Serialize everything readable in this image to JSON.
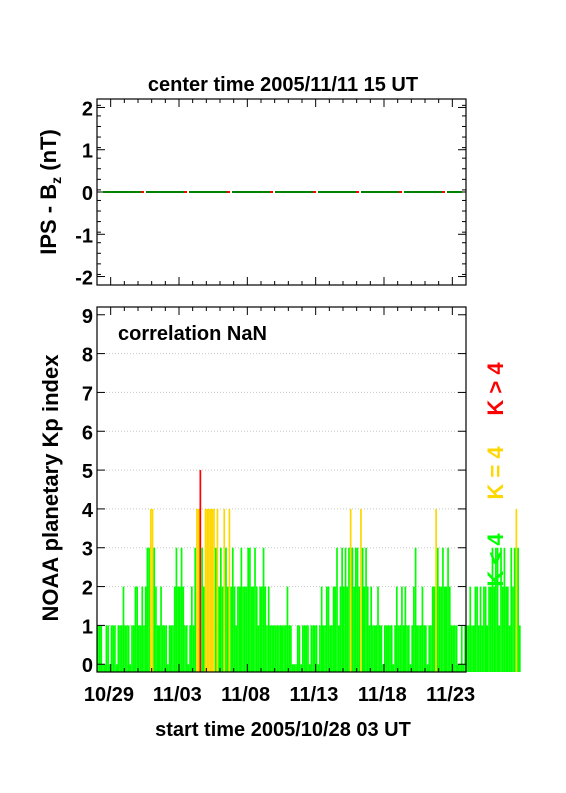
{
  "colors": {
    "k_lt4": "#00ff00",
    "k_eq4": "#ffd700",
    "k_gt4": "#ff0000",
    "ips_line": "#008000",
    "ips_dash": "#ff0000",
    "gridline": "#c8c8c8"
  },
  "chart_data": [
    {
      "type": "line",
      "title": "center time 2005/11/11 15 UT",
      "ylabel": "IPS - B",
      "ylabel_subscript": "z",
      "ylabel_unit": " (nT)",
      "ylim": [
        -2.2,
        2.2
      ],
      "yticks": [
        -2,
        -1,
        0,
        1,
        2
      ],
      "x_range_days": [
        0,
        27
      ],
      "series": [
        {
          "values": [
            0,
            0
          ]
        }
      ]
    },
    {
      "type": "bar",
      "ylabel": "NOAA planetary Kp index",
      "xlabel": "start time 2005/10/28 03 UT",
      "annotation": "correlation NaN",
      "ylim": [
        -0.2,
        9.2
      ],
      "yticks": [
        0,
        1,
        2,
        3,
        4,
        5,
        6,
        7,
        8,
        9
      ],
      "grid": true,
      "x_range_days": [
        0,
        27
      ],
      "x_tick_labels": [
        "10/29",
        "11/03",
        "11/08",
        "11/13",
        "11/18",
        "11/23"
      ],
      "x_tick_days": [
        0.875,
        5.875,
        10.875,
        15.875,
        20.875,
        25.875
      ],
      "legend": [
        "K < 4",
        "K = 4",
        "K > 4"
      ],
      "legend_position": "right, vertical",
      "bin_hours": 3,
      "kp_values": [
        1,
        1,
        1,
        0,
        0,
        1,
        1,
        0,
        1,
        1,
        1,
        0,
        1,
        1,
        1,
        2,
        1,
        1,
        1,
        0,
        1,
        1,
        2,
        2,
        1,
        1,
        2,
        1,
        2,
        3,
        3,
        4,
        4,
        3,
        2,
        1,
        1,
        2,
        1,
        1,
        1,
        0,
        1,
        1,
        1,
        2,
        3,
        2,
        2,
        3,
        2,
        1,
        1,
        0,
        1,
        2,
        1,
        3,
        4,
        4,
        5,
        3,
        2,
        4,
        4,
        4,
        4,
        4,
        4,
        3,
        4,
        2,
        3,
        2,
        4,
        3,
        2,
        4,
        2,
        3,
        2,
        1,
        2,
        2,
        3,
        2,
        2,
        2,
        3,
        3,
        2,
        2,
        3,
        2,
        1,
        2,
        2,
        3,
        2,
        1,
        2,
        1,
        1,
        1,
        1,
        1,
        1,
        1,
        1,
        1,
        1,
        2,
        1,
        1,
        0,
        0,
        0,
        1,
        1,
        0,
        1,
        1,
        1,
        1,
        0,
        1,
        1,
        1,
        1,
        0,
        1,
        2,
        1,
        1,
        2,
        2,
        1,
        1,
        2,
        2,
        3,
        1,
        2,
        3,
        2,
        3,
        2,
        3,
        4,
        3,
        2,
        3,
        3,
        2,
        4,
        3,
        2,
        3,
        2,
        1,
        2,
        1,
        1,
        1,
        2,
        1,
        1,
        0,
        1,
        1,
        1,
        1,
        1,
        0,
        1,
        2,
        1,
        1,
        2,
        1,
        2,
        1,
        1,
        0,
        1,
        2,
        3,
        1,
        1,
        1,
        2,
        1,
        1,
        0,
        1,
        1,
        2,
        2,
        4,
        3,
        2,
        2,
        3,
        2,
        2,
        3,
        2,
        1,
        1,
        1,
        1,
        0,
        0,
        1,
        0,
        1,
        1,
        1,
        2,
        1,
        1,
        2,
        2,
        1,
        2,
        1,
        2,
        2,
        1,
        2,
        2,
        3,
        2,
        3,
        3,
        1,
        3,
        2,
        3,
        2,
        2,
        1,
        3,
        2,
        3,
        4,
        3,
        1
      ]
    }
  ]
}
